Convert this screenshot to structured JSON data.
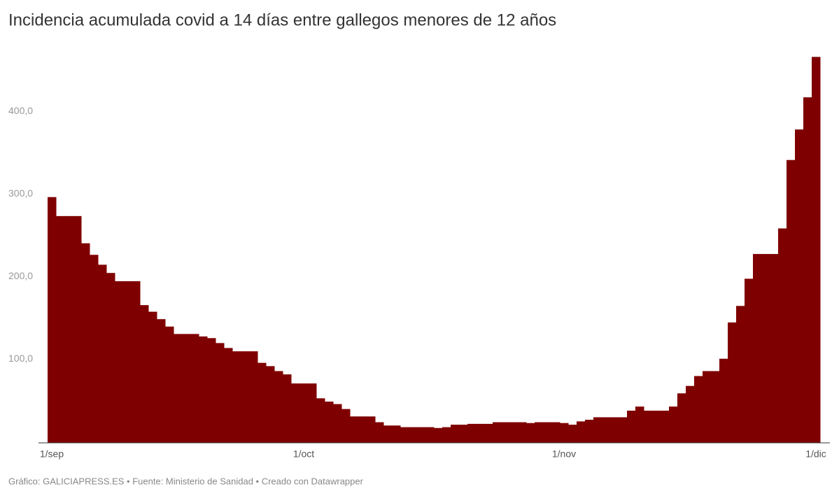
{
  "chart_data": {
    "type": "bar",
    "title": "Incidencia acumulada covid a 14 días entre gallegos menores de 12 años",
    "footer": "Gráfico: GALICIAPRESS.ES • Fuente: Ministerio de Sanidad • Creado con Datawrapper",
    "categories": [
      "1/sep",
      null,
      null,
      null,
      null,
      null,
      null,
      null,
      null,
      null,
      null,
      null,
      null,
      null,
      null,
      null,
      null,
      null,
      null,
      null,
      null,
      null,
      null,
      null,
      null,
      null,
      null,
      null,
      null,
      null,
      "1/oct",
      null,
      null,
      null,
      null,
      null,
      null,
      null,
      null,
      null,
      null,
      null,
      null,
      null,
      null,
      null,
      null,
      null,
      null,
      null,
      null,
      null,
      null,
      null,
      null,
      null,
      null,
      null,
      null,
      null,
      null,
      "1/nov",
      null,
      null,
      null,
      null,
      null,
      null,
      null,
      null,
      null,
      null,
      null,
      null,
      null,
      null,
      null,
      null,
      null,
      null,
      null,
      null,
      null,
      null,
      null,
      null,
      null,
      null,
      null,
      null,
      null,
      "1/dic"
    ],
    "values": [
      298,
      275,
      275,
      275,
      242,
      228,
      216,
      206,
      196,
      196,
      196,
      167,
      159,
      150,
      141,
      132,
      132,
      132,
      129,
      127,
      121,
      115,
      111,
      111,
      111,
      97,
      93,
      87,
      83,
      72,
      72,
      72,
      54,
      50,
      47,
      41,
      32,
      32,
      32,
      25,
      21,
      21,
      19,
      19,
      19,
      19,
      18,
      19,
      22,
      22,
      23,
      23,
      23,
      25,
      25,
      25,
      25,
      24,
      25,
      25,
      25,
      24,
      22,
      26,
      28,
      31,
      31,
      31,
      31,
      39,
      44,
      39,
      39,
      39,
      44,
      60,
      69,
      81,
      87,
      87,
      102,
      146,
      166,
      199,
      229,
      229,
      229,
      260,
      343,
      380,
      419,
      468
    ],
    "color": "#7f0000",
    "ylim": [
      0,
      470
    ],
    "yticks": [
      {
        "value": 100,
        "label": "100,0"
      },
      {
        "value": 200,
        "label": "200,0"
      },
      {
        "value": 300,
        "label": "300,0"
      },
      {
        "value": 400,
        "label": "400,0"
      }
    ],
    "grid": false
  }
}
